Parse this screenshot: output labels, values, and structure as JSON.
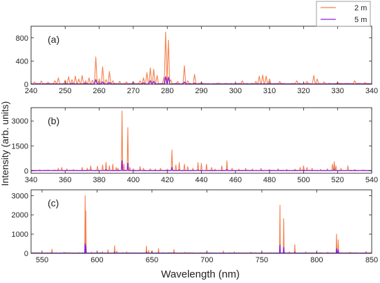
{
  "figure": {
    "ylabel": "Intensity (arb. units)",
    "xlabel": "Wavelength (nm)",
    "legend": {
      "placement": "top-right",
      "entries": [
        {
          "name": "2 m",
          "color": "#F4804A"
        },
        {
          "name": "5 m",
          "color": "#8A1FE6"
        }
      ]
    }
  },
  "chart_data": [
    {
      "type": "line",
      "panel_label": "(a)",
      "xlim": [
        240,
        340
      ],
      "ylim": [
        0,
        1000
      ],
      "xticks": [
        240,
        250,
        260,
        270,
        280,
        290,
        300,
        310,
        320,
        330,
        340
      ],
      "yticks": [
        0,
        400,
        800
      ],
      "series": [
        {
          "name": "2 m",
          "color": "#F4804A",
          "baseline": 10,
          "peaks": [
            [
              241,
              40
            ],
            [
              243,
              55
            ],
            [
              245,
              35
            ],
            [
              247,
              60
            ],
            [
              248,
              110
            ],
            [
              250,
              70
            ],
            [
              251,
              130
            ],
            [
              252,
              80
            ],
            [
              253,
              140
            ],
            [
              254,
              90
            ],
            [
              255,
              150
            ],
            [
              256,
              60
            ],
            [
              257,
              110
            ],
            [
              258,
              70
            ],
            [
              259,
              470
            ],
            [
              260,
              90
            ],
            [
              261,
              300
            ],
            [
              262,
              80
            ],
            [
              263,
              220
            ],
            [
              264,
              60
            ],
            [
              266,
              50
            ],
            [
              268,
              40
            ],
            [
              270,
              45
            ],
            [
              272,
              60
            ],
            [
              273,
              110
            ],
            [
              274,
              200
            ],
            [
              275,
              280
            ],
            [
              276,
              260
            ],
            [
              277,
              150
            ],
            [
              279,
              120
            ],
            [
              279.5,
              900
            ],
            [
              280.3,
              760
            ],
            [
              281,
              80
            ],
            [
              283,
              50
            ],
            [
              285,
              320
            ],
            [
              286,
              60
            ],
            [
              288,
              170
            ],
            [
              290,
              30
            ],
            [
              295,
              25
            ],
            [
              302,
              60
            ],
            [
              306,
              50
            ],
            [
              307,
              140
            ],
            [
              308,
              160
            ],
            [
              309,
              140
            ],
            [
              310,
              90
            ],
            [
              313,
              50
            ],
            [
              318,
              60
            ],
            [
              321,
              50
            ],
            [
              323,
              150
            ],
            [
              324,
              90
            ],
            [
              326,
              40
            ],
            [
              330,
              30
            ],
            [
              335,
              60
            ],
            [
              338,
              30
            ]
          ]
        },
        {
          "name": "5 m",
          "color": "#8A1FE6",
          "baseline": 5,
          "peaks": [
            [
              252,
              15
            ],
            [
              256,
              20
            ],
            [
              259,
              80
            ],
            [
              261,
              40
            ],
            [
              263,
              30
            ],
            [
              273,
              25
            ],
            [
              275,
              60
            ],
            [
              276,
              50
            ],
            [
              279.5,
              130
            ],
            [
              280.3,
              120
            ],
            [
              285,
              40
            ],
            [
              288,
              20
            ]
          ]
        }
      ]
    },
    {
      "type": "line",
      "panel_label": "(b)",
      "xlim": [
        340,
        540
      ],
      "ylim": [
        -150,
        3800
      ],
      "xticks": [
        340,
        360,
        380,
        400,
        420,
        440,
        460,
        480,
        500,
        520,
        540
      ],
      "yticks": [
        0,
        1500,
        3000
      ],
      "series": [
        {
          "name": "2 m",
          "color": "#F4804A",
          "baseline": 20,
          "peaks": [
            [
              345,
              60
            ],
            [
              350,
              50
            ],
            [
              356,
              150
            ],
            [
              358,
              200
            ],
            [
              361,
              120
            ],
            [
              365,
              80
            ],
            [
              370,
              200
            ],
            [
              373,
              150
            ],
            [
              375,
              300
            ],
            [
              379,
              280
            ],
            [
              382,
              350
            ],
            [
              384,
              500
            ],
            [
              386,
              300
            ],
            [
              388,
              400
            ],
            [
              390,
              200
            ],
            [
              391,
              150
            ],
            [
              393.4,
              3600
            ],
            [
              394.5,
              400
            ],
            [
              396.8,
              2600
            ],
            [
              398,
              200
            ],
            [
              400,
              120
            ],
            [
              404,
              250
            ],
            [
              406,
              150
            ],
            [
              410,
              120
            ],
            [
              413,
              100
            ],
            [
              416,
              150
            ],
            [
              420,
              100
            ],
            [
              422.7,
              1250
            ],
            [
              425,
              350
            ],
            [
              427,
              500
            ],
            [
              430,
              400
            ],
            [
              432,
              250
            ],
            [
              435,
              150
            ],
            [
              438,
              500
            ],
            [
              440,
              450
            ],
            [
              443,
              400
            ],
            [
              446,
              200
            ],
            [
              448,
              100
            ],
            [
              452,
              300
            ],
            [
              455,
              600
            ],
            [
              458,
              150
            ],
            [
              462,
              100
            ],
            [
              466,
              150
            ],
            [
              470,
              100
            ],
            [
              475,
              150
            ],
            [
              480,
              80
            ],
            [
              485,
              120
            ],
            [
              490,
              80
            ],
            [
              495,
              100
            ],
            [
              498,
              200
            ],
            [
              500,
              300
            ],
            [
              502,
              200
            ],
            [
              505,
              150
            ],
            [
              510,
              80
            ],
            [
              514,
              120
            ],
            [
              517,
              400
            ],
            [
              518,
              550
            ],
            [
              519,
              300
            ],
            [
              522,
              150
            ],
            [
              526,
              300
            ],
            [
              530,
              80
            ],
            [
              535,
              50
            ]
          ]
        },
        {
          "name": "5 m",
          "color": "#8A1FE6",
          "baseline": 10,
          "peaks": [
            [
              375,
              50
            ],
            [
              384,
              80
            ],
            [
              393.4,
              600
            ],
            [
              396.8,
              450
            ],
            [
              404,
              40
            ],
            [
              422.7,
              200
            ],
            [
              427,
              60
            ],
            [
              438,
              50
            ],
            [
              455,
              80
            ],
            [
              500,
              40
            ],
            [
              518,
              100
            ]
          ]
        }
      ]
    },
    {
      "type": "line",
      "panel_label": "(c)",
      "xlim": [
        540,
        850
      ],
      "ylim": [
        0,
        3300
      ],
      "xticks": [
        550,
        600,
        650,
        700,
        750,
        800,
        850
      ],
      "yticks": [
        0,
        1000,
        2000,
        3000
      ],
      "series": [
        {
          "name": "2 m",
          "color": "#F4804A",
          "baseline": 20,
          "peaks": [
            [
              545,
              40
            ],
            [
              559,
              220
            ],
            [
              570,
              60
            ],
            [
              589.2,
              3000
            ],
            [
              589.8,
              2200
            ],
            [
              595,
              60
            ],
            [
              605,
              80
            ],
            [
              610,
              180
            ],
            [
              616,
              400
            ],
            [
              618,
              120
            ],
            [
              627,
              80
            ],
            [
              645,
              380
            ],
            [
              647,
              150
            ],
            [
              650,
              120
            ],
            [
              656,
              250
            ],
            [
              670,
              200
            ],
            [
              680,
              60
            ],
            [
              700,
              40
            ],
            [
              715,
              120
            ],
            [
              725,
              80
            ],
            [
              740,
              60
            ],
            [
              750,
              60
            ],
            [
              766.5,
              2500
            ],
            [
              769.9,
              1800
            ],
            [
              775,
              80
            ],
            [
              780,
              450
            ],
            [
              790,
              80
            ],
            [
              800,
              60
            ],
            [
              810,
              60
            ],
            [
              818,
              1000
            ],
            [
              819.5,
              700
            ],
            [
              830,
              60
            ],
            [
              845,
              100
            ]
          ]
        },
        {
          "name": "5 m",
          "color": "#8A1FE6",
          "baseline": 10,
          "peaks": [
            [
              589.2,
              500
            ],
            [
              589.8,
              380
            ],
            [
              616,
              60
            ],
            [
              645,
              60
            ],
            [
              656,
              40
            ],
            [
              670,
              30
            ],
            [
              766.5,
              430
            ],
            [
              769.9,
              300
            ],
            [
              780,
              60
            ],
            [
              818,
              240
            ],
            [
              819.5,
              180
            ]
          ]
        }
      ]
    }
  ]
}
